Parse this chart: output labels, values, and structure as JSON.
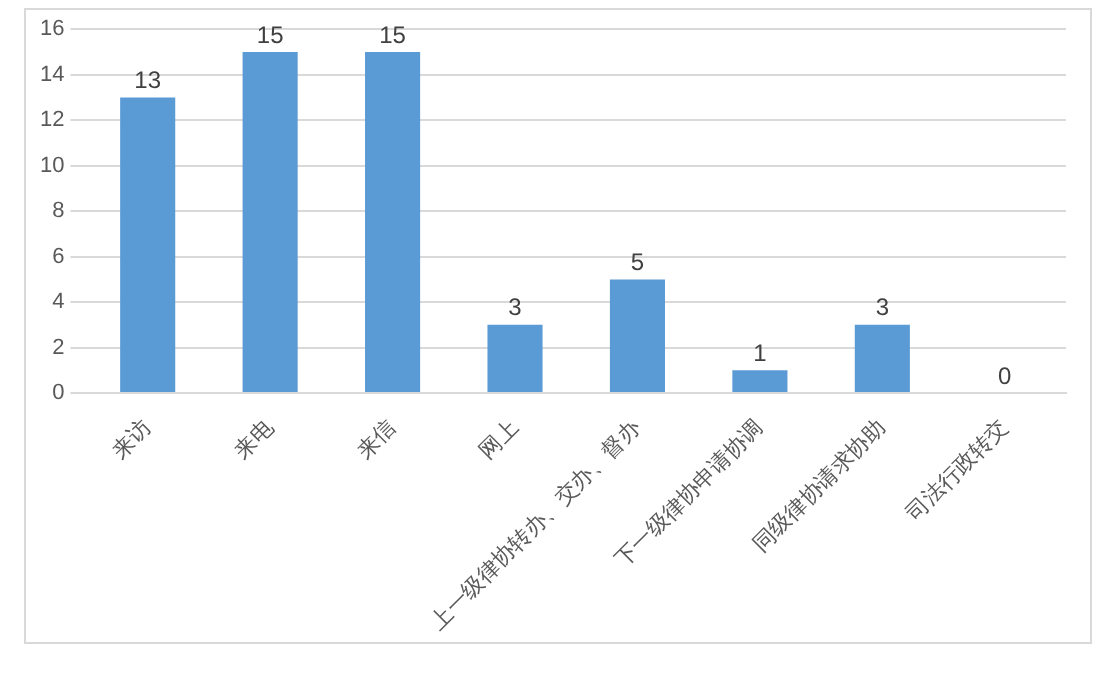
{
  "chart_data": {
    "type": "bar",
    "categories": [
      "来访",
      "来电",
      "来信",
      "网上",
      "上一级律协转办、交办、督办",
      "下一级律协申请协调",
      "同级律协请求协助",
      "司法行政转交"
    ],
    "values": [
      13,
      15,
      15,
      3,
      5,
      1,
      3,
      0
    ],
    "color": "#5b9bd5",
    "ylim": [
      0,
      16
    ],
    "yticks": [
      0,
      2,
      4,
      6,
      8,
      10,
      12,
      14,
      16
    ],
    "grid": "y",
    "data_labels": true,
    "legend": false
  }
}
